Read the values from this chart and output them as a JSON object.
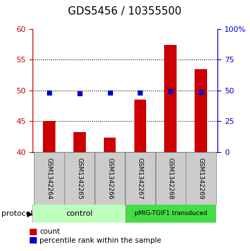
{
  "title": "GDS5456 / 10355500",
  "samples": [
    "GSM1342264",
    "GSM1342265",
    "GSM1342266",
    "GSM1342267",
    "GSM1342268",
    "GSM1342269"
  ],
  "counts": [
    45.0,
    43.2,
    42.3,
    48.5,
    57.4,
    53.4
  ],
  "percentile_ranks": [
    48.0,
    47.8,
    47.9,
    48.0,
    49.2,
    48.5
  ],
  "y_min": 40,
  "y_max": 60,
  "y_ticks": [
    40,
    45,
    50,
    55,
    60
  ],
  "y2_ticks": [
    0,
    25,
    50,
    75,
    100
  ],
  "y2_tick_labels": [
    "0",
    "25",
    "50",
    "75",
    "100%"
  ],
  "bar_color": "#cc0000",
  "dot_color": "#0000cc",
  "bar_bottom": 40,
  "ctrl_color": "#bbffbb",
  "pmig_color": "#44dd44",
  "legend_count_label": "count",
  "legend_percentile_label": "percentile rank within the sample",
  "title_fontsize": 11,
  "tick_fontsize": 8,
  "sample_fontsize": 6.5,
  "proto_fontsize": 8,
  "legend_fontsize": 7.5
}
